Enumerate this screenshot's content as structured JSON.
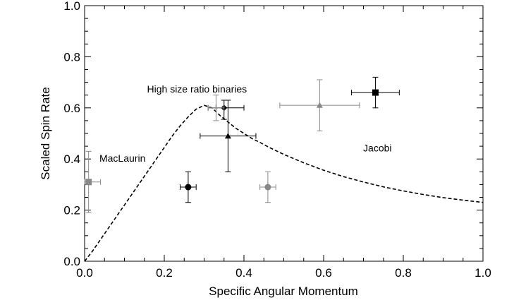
{
  "chart_data": {
    "type": "scatter",
    "title": "",
    "xlabel": "Specific Angular Momentum",
    "ylabel": "Scaled Spin Rate",
    "xlim": [
      0.0,
      1.0
    ],
    "ylim": [
      0.0,
      1.0
    ],
    "x_ticks": [
      0.0,
      0.2,
      0.4,
      0.6,
      0.8,
      1.0
    ],
    "y_ticks": [
      0.0,
      0.2,
      0.4,
      0.6,
      0.8,
      1.0
    ],
    "x_tick_labels": [
      "0.0",
      "0.2",
      "0.4",
      "0.6",
      "0.8",
      "1.0"
    ],
    "y_tick_labels": [
      "0.0",
      "0.2",
      "0.4",
      "0.6",
      "0.8",
      "1.0"
    ],
    "grid": false,
    "legend": "none",
    "annotations": [
      {
        "text": "High size ratio binaries",
        "x": 0.282,
        "y": 0.66
      },
      {
        "text": "MacLaurin",
        "x": 0.095,
        "y": 0.39
      },
      {
        "text": "Jacobi",
        "x": 0.735,
        "y": 0.43
      }
    ],
    "curve": {
      "style": "dashed",
      "color": "#000000",
      "x": [
        0.0,
        0.02,
        0.04,
        0.06,
        0.08,
        0.1,
        0.12,
        0.14,
        0.16,
        0.18,
        0.2,
        0.22,
        0.24,
        0.26,
        0.28,
        0.3,
        0.32,
        0.34,
        0.36,
        0.38,
        0.4,
        0.42,
        0.44,
        0.46,
        0.48,
        0.5,
        0.55,
        0.6,
        0.65,
        0.7,
        0.75,
        0.8,
        0.85,
        0.9,
        0.95,
        1.0
      ],
      "y": [
        0.0,
        0.04,
        0.085,
        0.13,
        0.175,
        0.22,
        0.265,
        0.31,
        0.355,
        0.4,
        0.445,
        0.49,
        0.53,
        0.565,
        0.595,
        0.61,
        0.6,
        0.57,
        0.545,
        0.52,
        0.5,
        0.48,
        0.465,
        0.448,
        0.433,
        0.418,
        0.385,
        0.356,
        0.331,
        0.31,
        0.291,
        0.275,
        0.261,
        0.249,
        0.239,
        0.23
      ]
    },
    "points": [
      {
        "x": 0.01,
        "y": 0.31,
        "xerr": [
          0.01,
          0.03
        ],
        "yerr": [
          0.12,
          0.12
        ],
        "marker": "square",
        "color": "#888888"
      },
      {
        "x": 0.26,
        "y": 0.29,
        "xerr": [
          0.02,
          0.02
        ],
        "yerr": [
          0.06,
          0.06
        ],
        "marker": "circle",
        "color": "#000000"
      },
      {
        "x": 0.46,
        "y": 0.29,
        "xerr": [
          0.02,
          0.02
        ],
        "yerr": [
          0.06,
          0.06
        ],
        "marker": "circle",
        "color": "#888888"
      },
      {
        "x": 0.35,
        "y": 0.6,
        "xerr": [
          0.04,
          0.05
        ],
        "yerr": [
          0.045,
          0.03
        ],
        "marker": "diamond",
        "color": "#000000"
      },
      {
        "x": 0.33,
        "y": 0.6,
        "xerr": [
          0.02,
          0.02
        ],
        "yerr": [
          0.05,
          0.05
        ],
        "marker": "plus",
        "color": "#888888"
      },
      {
        "x": 0.36,
        "y": 0.49,
        "xerr": [
          0.07,
          0.07
        ],
        "yerr": [
          0.14,
          0.14
        ],
        "marker": "triangle",
        "color": "#000000"
      },
      {
        "x": 0.59,
        "y": 0.61,
        "xerr": [
          0.1,
          0.1
        ],
        "yerr": [
          0.1,
          0.1
        ],
        "marker": "triangle",
        "color": "#888888"
      },
      {
        "x": 0.73,
        "y": 0.66,
        "xerr": [
          0.06,
          0.06
        ],
        "yerr": [
          0.06,
          0.06
        ],
        "marker": "square",
        "color": "#000000"
      }
    ]
  }
}
